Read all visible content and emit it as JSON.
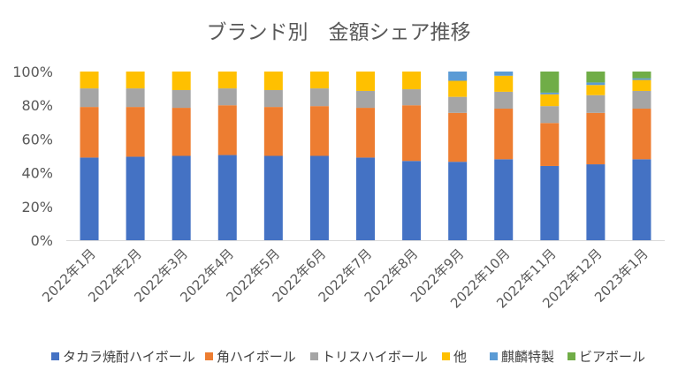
{
  "chart_data": {
    "type": "bar",
    "stacked": true,
    "title": "ブランド別　金額シェア推移",
    "xlabel": "",
    "ylabel": "",
    "ylim": [
      0,
      100
    ],
    "y_ticks": [
      "0%",
      "20%",
      "40%",
      "60%",
      "80%",
      "100%"
    ],
    "grid": false,
    "legend_position": "bottom",
    "categories": [
      "2022年1月",
      "2022年2月",
      "2022年3月",
      "2022年4月",
      "2022年5月",
      "2022年6月",
      "2022年7月",
      "2022年8月",
      "2022年9月",
      "2022年10月",
      "2022年11月",
      "2022年12月",
      "2023年1月"
    ],
    "series": [
      {
        "name": "タカラ焼酎ハイボール",
        "color": "#4472C4",
        "values": [
          49,
          49.5,
          50,
          50.5,
          50,
          50,
          49,
          47,
          46.5,
          48,
          44,
          45,
          48
        ]
      },
      {
        "name": "角ハイボール",
        "color": "#ED7D31",
        "values": [
          30,
          29.5,
          28.5,
          29.5,
          29,
          29.5,
          29.5,
          33,
          29,
          30,
          25.5,
          30.5,
          30
        ]
      },
      {
        "name": "トリスハイボール",
        "color": "#A5A5A5",
        "values": [
          11,
          11,
          10.5,
          10,
          10,
          10.5,
          10,
          9.5,
          9.5,
          10,
          10,
          10.5,
          10.5
        ]
      },
      {
        "name": "他",
        "color": "#FFC000",
        "values": [
          10,
          10,
          11,
          10,
          11,
          10,
          11.5,
          10.5,
          9.5,
          9.5,
          7,
          6,
          6.5
        ]
      },
      {
        "name": "麒麟特製",
        "color": "#5B9BD5",
        "values": [
          0,
          0,
          0,
          0,
          0,
          0,
          0,
          0,
          5.5,
          2.5,
          1,
          1.5,
          1
        ]
      },
      {
        "name": "ビアボール",
        "color": "#70AD47",
        "values": [
          0,
          0,
          0,
          0,
          0,
          0,
          0,
          0,
          0,
          0,
          12.5,
          6.5,
          4
        ]
      }
    ]
  }
}
